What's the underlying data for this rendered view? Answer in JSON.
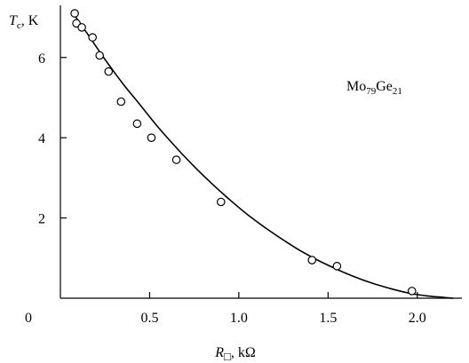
{
  "chart_data": {
    "type": "scatter",
    "title": "",
    "xlabel": "R□, kΩ",
    "ylabel": "Tc, K",
    "xlim": [
      0,
      2.25
    ],
    "ylim": [
      0,
      7.3
    ],
    "grid": false,
    "x_ticks": [
      {
        "value": 0,
        "label": "0"
      },
      {
        "value": 0.5,
        "label": "0.5"
      },
      {
        "value": 1.0,
        "label": "1.0"
      },
      {
        "value": 1.5,
        "label": "1.5"
      },
      {
        "value": 2.0,
        "label": "2.0"
      }
    ],
    "y_ticks": [
      {
        "value": 2,
        "label": "2"
      },
      {
        "value": 4,
        "label": "4"
      },
      {
        "value": 6,
        "label": "6"
      }
    ],
    "annotation": "Mo79Ge21",
    "series": [
      {
        "type": "scatter",
        "x": [
          0.08,
          0.09,
          0.12,
          0.18,
          0.22,
          0.27,
          0.34,
          0.43,
          0.51,
          0.65,
          0.9,
          1.41,
          1.55,
          1.97
        ],
        "y": [
          7.1,
          6.85,
          6.75,
          6.5,
          6.05,
          5.65,
          4.9,
          4.35,
          4.0,
          3.45,
          2.4,
          0.95,
          0.8,
          0.18
        ]
      },
      {
        "type": "line",
        "x": [
          0.08,
          0.15,
          0.25,
          0.35,
          0.45,
          0.55,
          0.65,
          0.75,
          0.85,
          0.95,
          1.05,
          1.15,
          1.25,
          1.35,
          1.45,
          1.55,
          1.65,
          1.75,
          1.85,
          1.95,
          2.05,
          2.12,
          2.2
        ],
        "y": [
          7.05,
          6.6,
          5.95,
          5.35,
          4.8,
          4.25,
          3.75,
          3.28,
          2.85,
          2.45,
          2.08,
          1.75,
          1.45,
          1.17,
          0.93,
          0.72,
          0.53,
          0.37,
          0.24,
          0.13,
          0.06,
          0.03,
          0.0
        ]
      }
    ]
  }
}
